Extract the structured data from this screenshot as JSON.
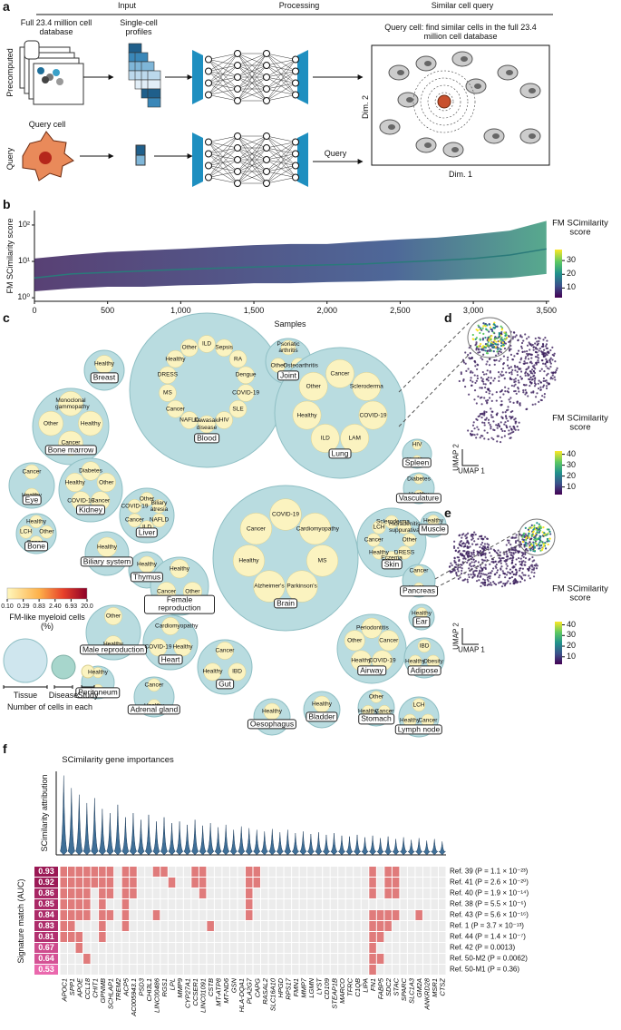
{
  "panel_a": {
    "label": "a",
    "headers": [
      "Input",
      "Processing",
      "Similar cell query"
    ],
    "database": "Full 23.4 million cell database",
    "profiles": "Single-cell profiles",
    "row_labels": [
      "Precomputed",
      "Query"
    ],
    "query_cell": "Query cell",
    "query_arrow": "Query",
    "box_title": "Query cell: find similar cells in the full 23.4 million cell database",
    "dim2": "Dim. 2",
    "dim1": "Dim. 1"
  },
  "chart_data": [
    {
      "type": "band",
      "label": "b",
      "ylabel": "FM SCimilarity score",
      "xlabel": "Samples",
      "log_y": true,
      "xlim": [
        0,
        3520
      ],
      "ylim": [
        0.8,
        250
      ],
      "xticks": [
        0,
        500,
        {
          "value": 1000,
          "label": "1,000"
        },
        {
          "value": 1500,
          "label": "1,500"
        },
        {
          "value": 2000,
          "label": "2,000"
        },
        {
          "value": 2500,
          "label": "2,500"
        },
        {
          "value": 3000,
          "label": "3,000"
        },
        {
          "value": 3500,
          "label": "3,500"
        }
      ],
      "yticks": [
        {
          "value": 1,
          "label": "10⁰"
        },
        {
          "value": 10,
          "label": "10¹"
        },
        {
          "value": 100,
          "label": "10²"
        }
      ],
      "x": [
        0,
        250,
        500,
        750,
        1000,
        1250,
        1500,
        1750,
        2000,
        2250,
        2500,
        2750,
        3000,
        3250,
        3500
      ],
      "values": [
        3.5,
        4.5,
        5,
        5.5,
        6,
        6.5,
        7,
        7.5,
        8,
        8.5,
        9.5,
        10.5,
        12,
        15,
        22
      ],
      "values_low": [
        1.5,
        1.8,
        2,
        2,
        2.2,
        2.3,
        2.5,
        2.5,
        2.7,
        2.8,
        3,
        3,
        3.3,
        3.5,
        4.5
      ],
      "values_high": [
        12,
        15,
        18,
        20,
        22,
        25,
        28,
        30,
        30,
        35,
        40,
        45,
        55,
        70,
        130
      ],
      "color": "#3b1f5c",
      "line_color": "#2a7a7a",
      "colorbar": {
        "title": "FM SCimilarity score",
        "lim": [
          3,
          38
        ],
        "ticks": [
          10,
          20,
          30
        ]
      }
    },
    {
      "type": "bubble",
      "label": "c",
      "tissues": [
        {
          "name": "Breast",
          "labels": [
            "Healthy"
          ]
        },
        {
          "name": "Bone marrow",
          "labels": [
            "Monoclonal gammopathy",
            "Healthy",
            "Cancer",
            "Other"
          ]
        },
        {
          "name": "Eye",
          "labels": [
            "Cancer",
            "Healthy"
          ]
        },
        {
          "name": "Kidney",
          "labels": [
            "Diabetes",
            "Other",
            "Cancer",
            "COVID-19",
            "Healthy"
          ]
        },
        {
          "name": "Bone",
          "labels": [
            "Healthy",
            "Other",
            "Cancer",
            "LCH"
          ]
        },
        {
          "name": "Liver",
          "labels": [
            "Other",
            "Biliary atresia",
            "NAFLD",
            "ILD",
            "Cancer",
            "COVID-19"
          ]
        },
        {
          "name": "Biliary system",
          "labels": [
            "Healthy"
          ]
        },
        {
          "name": "Thymus",
          "labels": [
            "Healthy"
          ]
        },
        {
          "name": "Female reproduction",
          "labels": [
            "Healthy",
            "Other",
            "Cancer"
          ]
        },
        {
          "name": "Male reproduction",
          "labels": [
            "Other",
            "Healthy"
          ]
        },
        {
          "name": "Heart",
          "labels": [
            "Cardiomyopathy",
            "Healthy",
            "COVID-19"
          ]
        },
        {
          "name": "Peritoneum",
          "labels": [
            "Healthy",
            "Cancer"
          ]
        },
        {
          "name": "Adrenal gland",
          "labels": [
            "Cancer",
            "Healthy"
          ]
        },
        {
          "name": "Gut",
          "labels": [
            "Cancer",
            "IBD",
            "Healthy"
          ]
        },
        {
          "name": "Oesophagus",
          "labels": [
            "Healthy"
          ]
        },
        {
          "name": "Blood",
          "labels": [
            "ILD",
            "Sepsis",
            "RA",
            "Dengue",
            "COVID-19",
            "SLE",
            "HIV",
            "Kawasaki disease",
            "NAFLD",
            "Cancer",
            "MS",
            "DRESS",
            "Healthy",
            "Other"
          ]
        },
        {
          "name": "Joint",
          "labels": [
            "Psoriatic arthritis",
            "Osteoarthritis",
            "Other"
          ]
        },
        {
          "name": "Lung",
          "labels": [
            "Cancer",
            "Scleroderma",
            "COVID-19",
            "LAM",
            "ILD",
            "Healthy",
            "Other"
          ]
        },
        {
          "name": "Spleen",
          "labels": [
            "HIV",
            "Healthy"
          ]
        },
        {
          "name": "Vasculature",
          "labels": [
            "Diabetes",
            "Healthy"
          ]
        },
        {
          "name": "Brain",
          "labels": [
            "COVID-19",
            "Cardiomyopathy",
            "MS",
            "Parkinson's",
            "Alzheimer's",
            "Healthy",
            "Cancer"
          ]
        },
        {
          "name": "Skin",
          "labels": [
            "Scleroderma",
            "Hidradenitis suppurativa",
            "Other",
            "DRESS",
            "Eczema",
            "Healthy",
            "Cancer",
            "LCH"
          ]
        },
        {
          "name": "Muscle",
          "labels": [
            "Healthy"
          ]
        },
        {
          "name": "Pancreas",
          "labels": [
            "Cancer",
            "Healthy"
          ]
        },
        {
          "name": "Airway",
          "labels": [
            "Periodontitis",
            "Cancer",
            "COVID-19",
            "Healthy",
            "Other"
          ]
        },
        {
          "name": "Ear",
          "labels": [
            "Healthy"
          ]
        },
        {
          "name": "Adipose",
          "labels": [
            "IBD",
            "Obesity",
            "Healthy"
          ]
        },
        {
          "name": "Stomach",
          "labels": [
            "Other",
            "Cancer",
            "Healthy"
          ]
        },
        {
          "name": "Bladder",
          "labels": [
            "Healthy"
          ]
        },
        {
          "name": "Lymph node",
          "labels": [
            "LCH",
            "Cancer",
            "Healthy"
          ]
        }
      ],
      "colorbar": {
        "title": "FM-like myeloid cells (%)",
        "log_scale": true,
        "ticks": [
          {
            "value": 0.1,
            "label": "0.10"
          },
          0.29,
          0.83,
          {
            "value": 2.4,
            "label": "2.40"
          },
          6.93,
          {
            "value": 20,
            "label": "20.0"
          }
        ]
      },
      "size_legend": {
        "items": [
          "Tissue",
          "Disease",
          "Study"
        ],
        "title": "Number of cells in each"
      }
    },
    {
      "type": "umap",
      "label": "d",
      "xlabel": "UMAP 1",
      "ylabel": "UMAP 2",
      "colorbar": {
        "title": "FM SCimilarity score",
        "lim": [
          3,
          43
        ],
        "ticks": [
          10,
          20,
          30,
          40
        ]
      }
    },
    {
      "type": "umap",
      "label": "e",
      "xlabel": "UMAP 1",
      "ylabel": "UMAP 2",
      "colorbar": {
        "title": "FM SCimilarity score",
        "lim": [
          3,
          43
        ],
        "ticks": [
          10,
          20,
          30,
          40
        ]
      }
    },
    {
      "type": "violin",
      "label": "f",
      "title": "SCimilarity gene importances",
      "ylabel": "SCimilarity attribution",
      "ylim": [
        0,
        1
      ],
      "color": "#3f6f97",
      "categories": [
        "APOC1",
        "SPP1",
        "APOE",
        "CCL18",
        "CHIT1",
        "GPNMB",
        "SCHLAP1",
        "TREM2",
        "ACP5",
        "AC005943.1",
        "PSD3",
        "CHI3L1",
        "LINC00486",
        "RGS1",
        "LPL",
        "MMP9",
        "CYP27A1",
        "CCSER1",
        "LINC01091",
        "CSTB",
        "MT-ATP8",
        "MT-ND6",
        "GSN",
        "HLA-DQA1",
        "PLA2G7",
        "CAPG",
        "RASAL2",
        "SLC16A10",
        "HPGD",
        "RPS17",
        "FMN1",
        "MMP7",
        "LGMN",
        "LYST",
        "CD109",
        "STEAP1B",
        "MARCO",
        "TFRC",
        "C1QB",
        "LIPA",
        "FN1",
        "FABP5",
        "SDC2",
        "STAC",
        "SPARC",
        "SLC1A3",
        "GM2A",
        "ANKRD28",
        "MSR1",
        "CTSZ"
      ],
      "values": [
        0.95,
        0.8,
        0.72,
        0.62,
        0.68,
        0.55,
        0.5,
        0.6,
        0.45,
        0.5,
        0.42,
        0.48,
        0.4,
        0.45,
        0.38,
        0.4,
        0.36,
        0.42,
        0.35,
        0.38,
        0.33,
        0.36,
        0.3,
        0.34,
        0.32,
        0.3,
        0.28,
        0.31,
        0.27,
        0.3,
        0.26,
        0.28,
        0.25,
        0.27,
        0.24,
        0.26,
        0.23,
        0.22,
        0.24,
        0.21,
        0.23,
        0.2,
        0.22,
        0.19,
        0.21,
        0.18,
        0.2,
        0.17,
        0.19,
        0.16
      ]
    },
    {
      "type": "heatmap",
      "ylabel": "Signature match (AUC)",
      "hit_color": "#e07b7b",
      "rows": [
        {
          "auc": 0.93,
          "label": "Ref. 39 (P = 1.1 × 10⁻²³)",
          "hits": [
            0,
            1,
            2,
            3,
            4,
            5,
            6,
            8,
            9,
            12,
            13,
            17,
            18,
            24,
            25,
            40,
            42,
            43
          ]
        },
        {
          "auc": 0.92,
          "label": "Ref. 41 (P = 2.6 × 10⁻²⁰)",
          "hits": [
            0,
            1,
            2,
            3,
            4,
            5,
            6,
            8,
            9,
            14,
            17,
            18,
            24,
            25,
            40,
            42,
            43
          ]
        },
        {
          "auc": 0.86,
          "label": "Ref. 40 (P = 1.9 × 10⁻¹⁴)",
          "hits": [
            0,
            1,
            2,
            3,
            5,
            6,
            8,
            9,
            18,
            24,
            40,
            42,
            43
          ]
        },
        {
          "auc": 0.85,
          "label": "Ref. 38 (P = 5.5 × 10⁻⁶)",
          "hits": [
            0,
            1,
            2,
            3,
            5,
            8,
            24
          ]
        },
        {
          "auc": 0.84,
          "label": "Ref. 43 (P = 5.6 × 10⁻¹⁶)",
          "hits": [
            0,
            1,
            2,
            3,
            5,
            6,
            8,
            12,
            24,
            40,
            41,
            42,
            43,
            46
          ]
        },
        {
          "auc": 0.83,
          "label": "Ref. 1 (P = 3.7 × 10⁻¹³)",
          "hits": [
            0,
            1,
            5,
            8,
            19,
            40,
            41,
            42
          ]
        },
        {
          "auc": 0.81,
          "label": "Ref. 44 (P = 1.4 × 10⁻⁷)",
          "hits": [
            0,
            1,
            2,
            5,
            40,
            41
          ]
        },
        {
          "auc": 0.67,
          "label": "Ref. 42 (P = 0.0013)",
          "hits": [
            2,
            40
          ]
        },
        {
          "auc": 0.64,
          "label": "Ref. 50-M2 (P = 0.0062)",
          "hits": [
            3,
            40,
            41
          ]
        },
        {
          "auc": 0.53,
          "label": "Ref. 50-M1 (P = 0.36)",
          "hits": [
            40
          ]
        }
      ]
    }
  ]
}
